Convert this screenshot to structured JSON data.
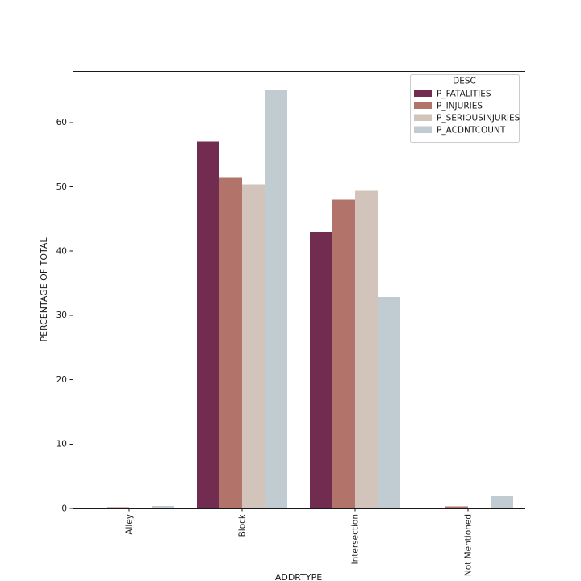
{
  "figure": {
    "background": "#ffffff",
    "text_color": "#1a1a1a",
    "spine_color": "#1a1a1a",
    "legend_border_color": "#cccccc"
  },
  "chart_data": {
    "type": "bar",
    "title": "",
    "xlabel": "ADDRTYPE",
    "ylabel": "PERCENTAGE OF TOTAL",
    "categories": [
      "Alley",
      "Block",
      "Intersection",
      "Not Mentioned"
    ],
    "series": [
      {
        "name": "P_FATALITIES",
        "color": "#722C50",
        "values": [
          0.0,
          57.0,
          43.0,
          0.0
        ]
      },
      {
        "name": "P_INJURIES",
        "color": "#B2746A",
        "values": [
          0.2,
          51.5,
          48.0,
          0.3
        ]
      },
      {
        "name": "P_SERIOUSINJURIES",
        "color": "#D2C4BB",
        "values": [
          0.15,
          50.4,
          49.4,
          0.1
        ]
      },
      {
        "name": "P_ACDNTCOUNT",
        "color": "#C0CCD2",
        "values": [
          0.4,
          65.0,
          32.9,
          1.9
        ]
      }
    ],
    "legend": {
      "title": "DESC",
      "position": "upper right"
    },
    "ylim": [
      0,
      68
    ],
    "yticks": [
      0,
      10,
      20,
      30,
      40,
      50,
      60
    ],
    "grid": false,
    "x_tick_rotation_deg": 90
  }
}
